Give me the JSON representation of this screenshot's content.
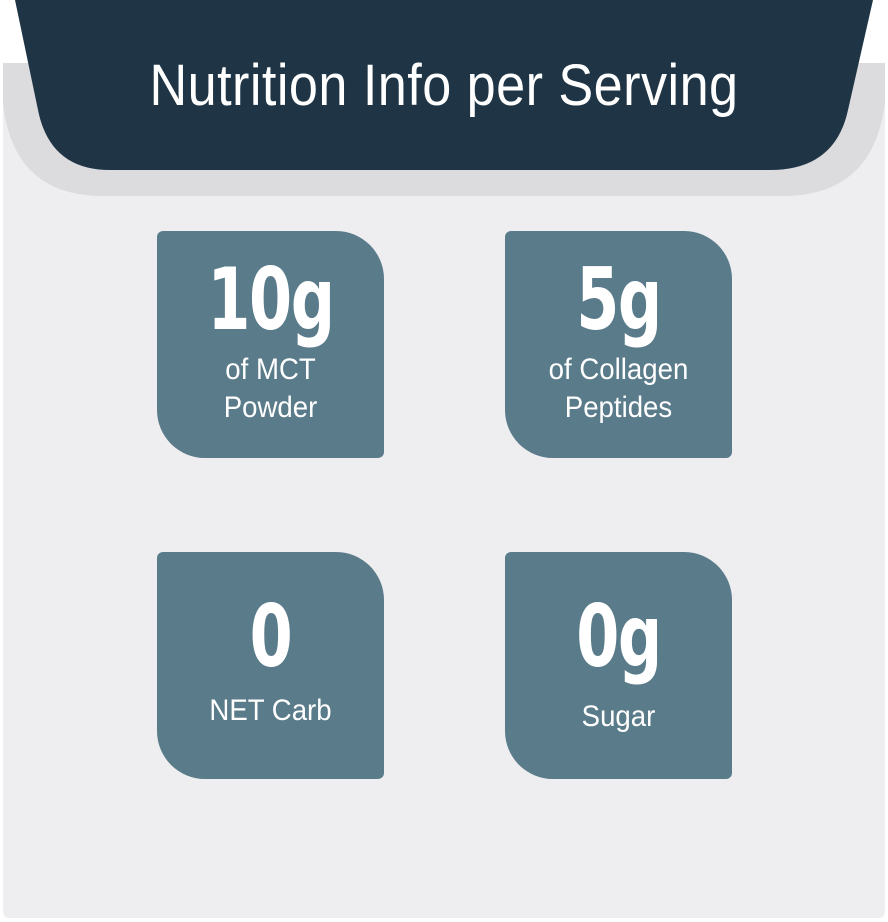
{
  "title": "Nutrition Info per Serving",
  "colors": {
    "header": "#1f3545",
    "tile": "#5a7b8a",
    "background": "#eeeef1",
    "shadow": "#dcdcdf"
  },
  "items": [
    {
      "value": "10g",
      "label_line1": "of MCT",
      "label_line2": "Powder"
    },
    {
      "value": "5g",
      "label_line1": "of Collagen",
      "label_line2": "Peptides"
    },
    {
      "value": "0",
      "label_line1": "NET Carb",
      "label_line2": ""
    },
    {
      "value": "0g",
      "label_line1": "Sugar",
      "label_line2": ""
    }
  ]
}
